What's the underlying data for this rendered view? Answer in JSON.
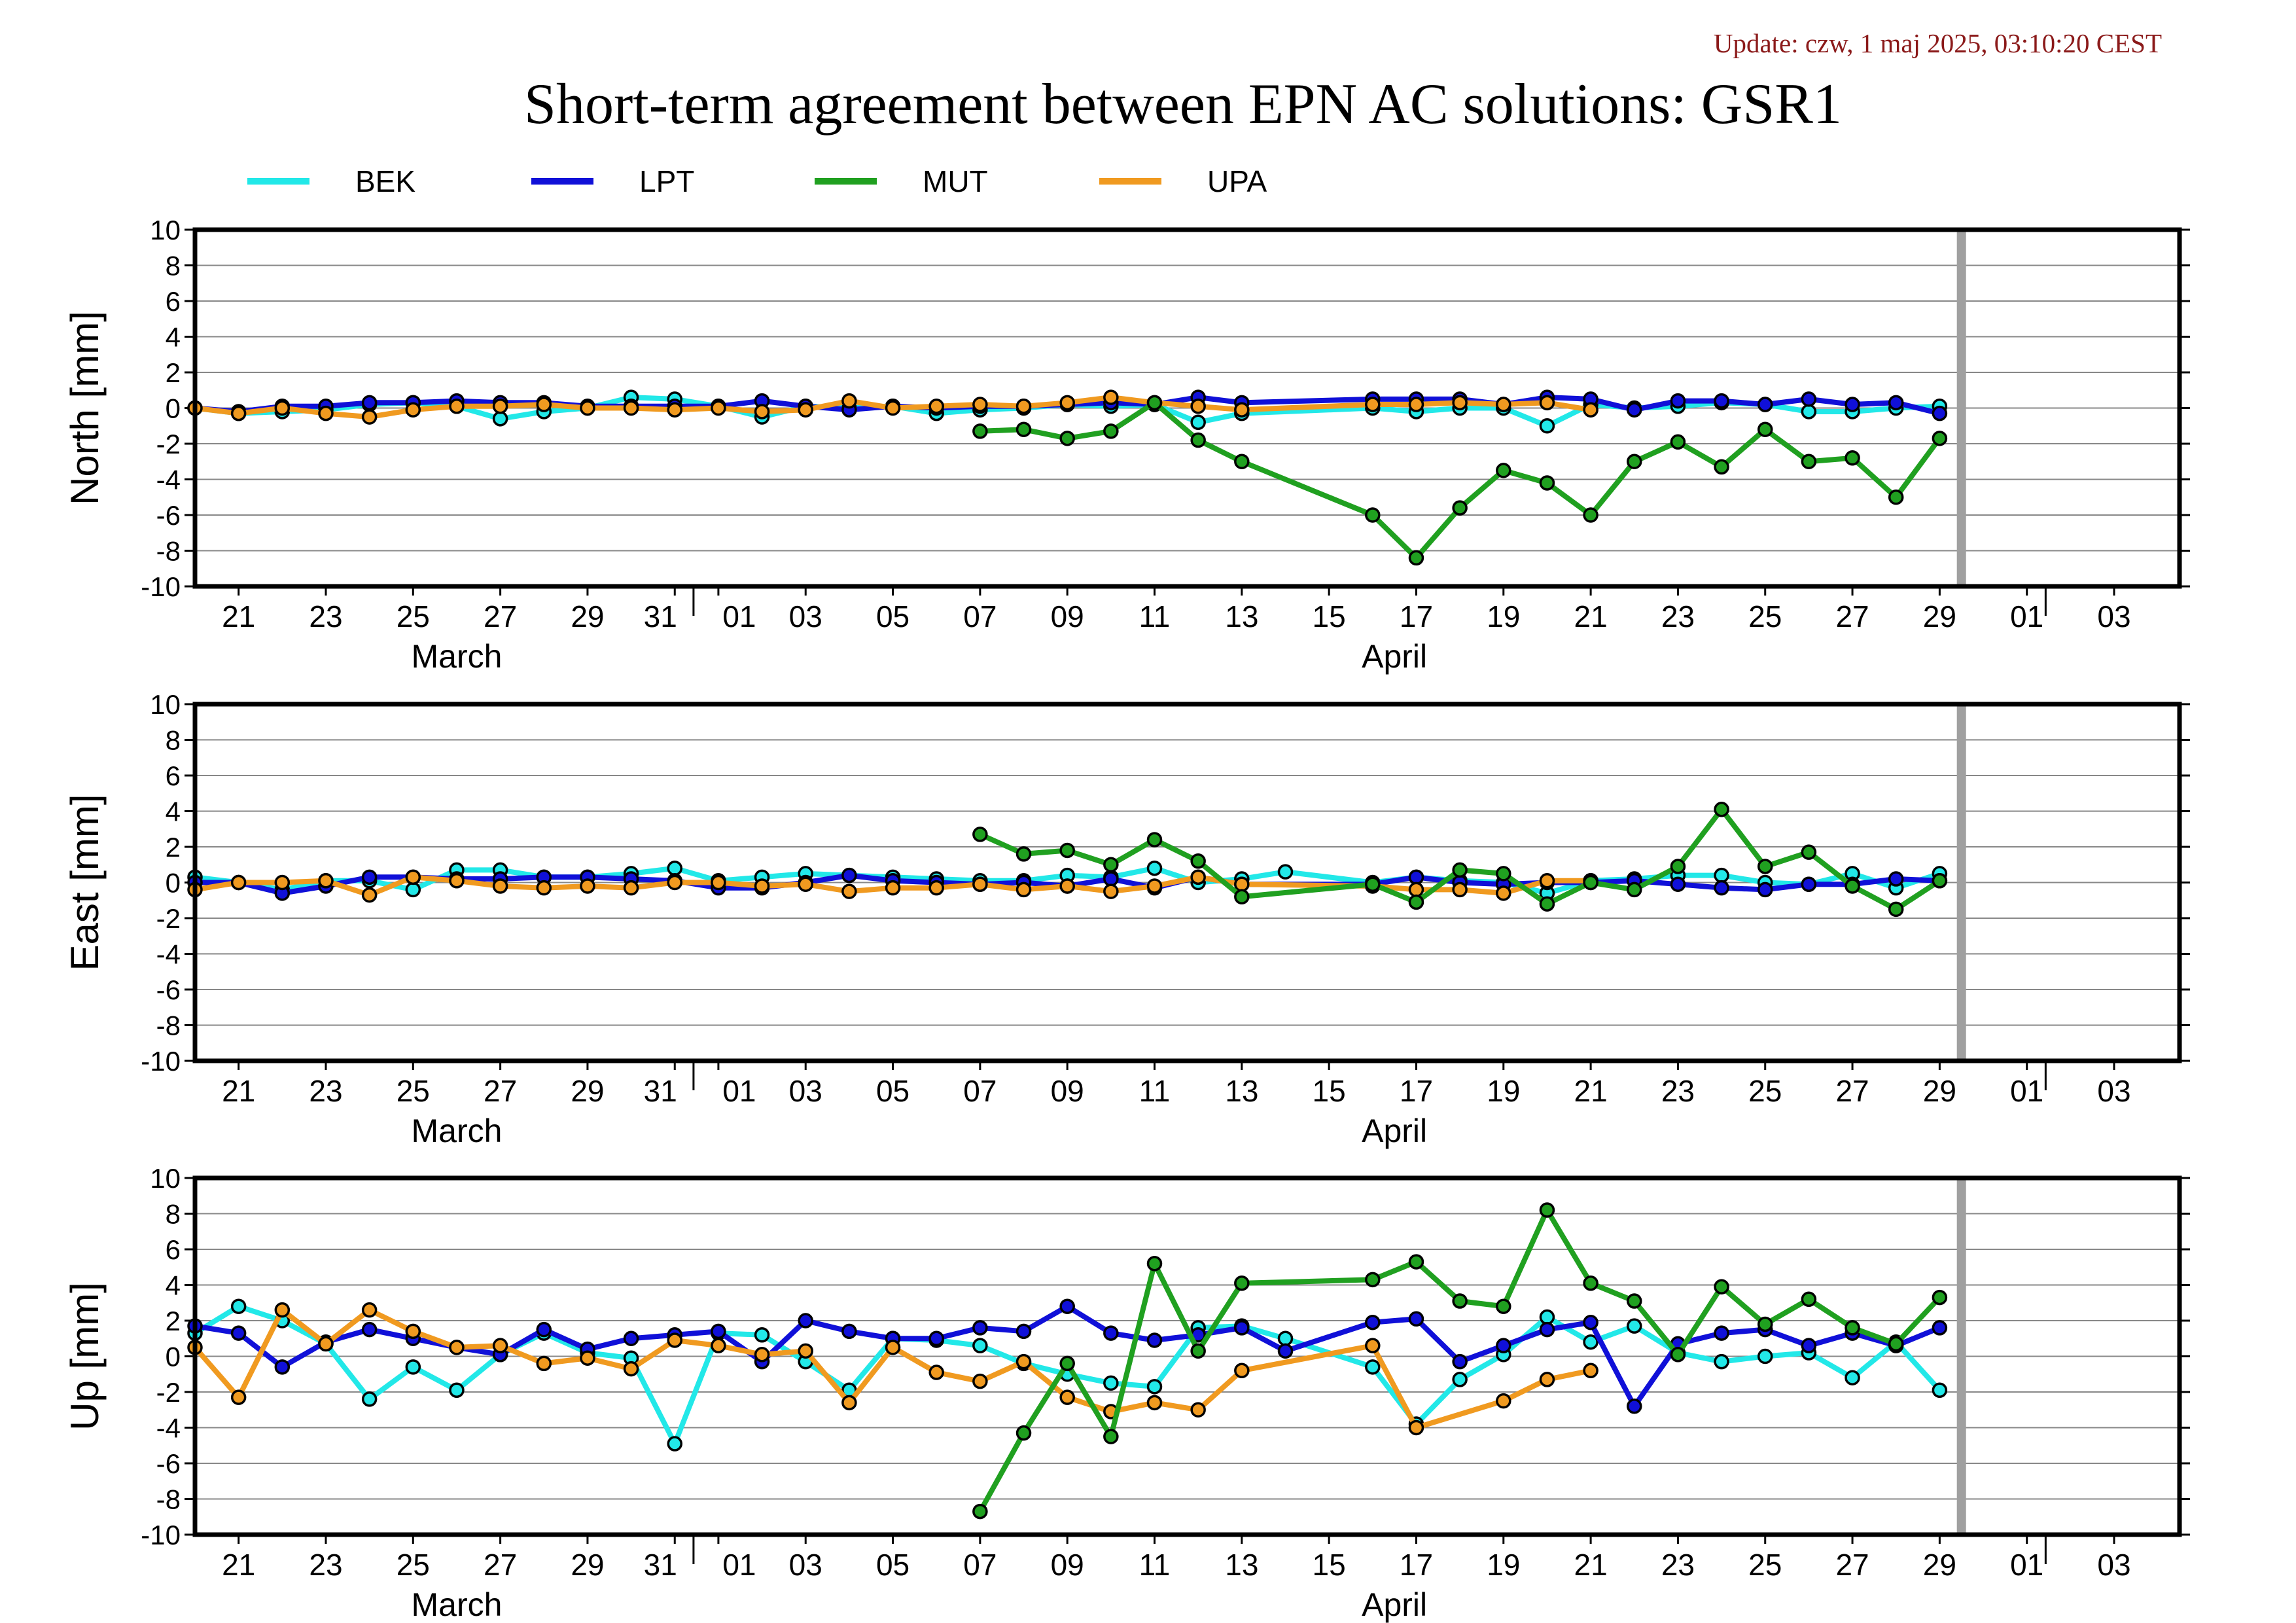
{
  "update_text": "Update: czw, 1 maj 2025, 03:10:20 CEST",
  "title": "Short-term agreement between EPN AC solutions: GSR1",
  "colors": {
    "BEK": "#22e8e8",
    "LPT": "#1010d8",
    "MUT": "#20a020",
    "UPA": "#f09a20",
    "marker_line": "#000000",
    "today_bar": "#a0a0a0",
    "grid": "#888888"
  },
  "legend": [
    {
      "name": "BEK",
      "color": "#22e8e8"
    },
    {
      "name": "LPT",
      "color": "#1010d8"
    },
    {
      "name": "MUT",
      "color": "#20a020"
    },
    {
      "name": "UPA",
      "color": "#f09a20"
    }
  ],
  "x_ticks": [
    "21",
    "23",
    "25",
    "27",
    "29",
    "31",
    "01",
    "03",
    "05",
    "07",
    "09",
    "11",
    "13",
    "15",
    "17",
    "19",
    "21",
    "23",
    "25",
    "27",
    "29",
    "01",
    "03"
  ],
  "month_labels": [
    "March",
    "April"
  ],
  "chart_data": [
    {
      "type": "line",
      "ylabel": "North [mm]",
      "ylim": [
        -10,
        10
      ],
      "yticks": [
        10,
        8,
        6,
        4,
        2,
        0,
        -2,
        -4,
        -6,
        -8,
        -10
      ],
      "x_unit": "day index from 20 March 2025",
      "xlim": [
        20,
        65
      ],
      "grid": true,
      "series": [
        {
          "name": "BEK",
          "x": [
            20,
            21,
            22,
            23,
            24,
            25,
            26,
            27,
            28,
            29,
            30,
            31,
            32,
            33,
            34,
            35,
            36,
            37,
            38,
            39,
            40,
            41,
            42,
            43,
            44,
            47,
            48,
            49,
            50,
            51,
            52,
            53,
            54,
            55,
            56,
            57,
            58,
            59,
            60
          ],
          "values": [
            0,
            -0.3,
            -0.2,
            -0.1,
            0.2,
            0.3,
            0.1,
            -0.6,
            -0.2,
            0,
            0.6,
            0.5,
            0.1,
            -0.5,
            0.1,
            0,
            0.1,
            -0.3,
            -0.1,
            0,
            0.2,
            0.1,
            0.2,
            -0.8,
            -0.3,
            0,
            -0.2,
            0,
            0,
            -1.0,
            0.2,
            0,
            0.1,
            0.3,
            0.2,
            -0.2,
            -0.2,
            0,
            0.1
          ]
        },
        {
          "name": "LPT",
          "x": [
            20,
            21,
            22,
            23,
            24,
            25,
            26,
            27,
            28,
            29,
            30,
            31,
            32,
            33,
            34,
            35,
            36,
            37,
            38,
            39,
            40,
            41,
            42,
            43,
            44,
            47,
            48,
            49,
            50,
            51,
            52,
            53,
            54,
            55,
            56,
            57,
            58,
            59,
            60
          ],
          "values": [
            0,
            -0.2,
            0.1,
            0.1,
            0.3,
            0.3,
            0.4,
            0.3,
            0.3,
            0.1,
            0.1,
            0.1,
            0.1,
            0.4,
            0.1,
            -0.1,
            0.1,
            0,
            0.1,
            0.1,
            0.2,
            0.3,
            0.2,
            0.6,
            0.3,
            0.5,
            0.5,
            0.5,
            0.2,
            0.6,
            0.5,
            -0.1,
            0.4,
            0.4,
            0.2,
            0.5,
            0.2,
            0.3,
            -0.3
          ]
        },
        {
          "name": "MUT",
          "x": [
            38,
            39,
            40,
            41,
            42,
            43,
            44,
            47,
            48,
            49,
            50,
            51,
            52,
            53,
            54,
            55,
            56,
            57,
            58,
            59,
            60
          ],
          "values": [
            -1.3,
            -1.2,
            -1.7,
            -1.3,
            0.3,
            -1.8,
            -3.0,
            -6.0,
            -8.4,
            -5.6,
            -3.5,
            -4.2,
            -6.0,
            -3.0,
            -1.9,
            -3.3,
            -1.2,
            -3.0,
            -2.8,
            -5.0,
            -1.7
          ]
        },
        {
          "name": "UPA",
          "x": [
            20,
            21,
            22,
            23,
            24,
            25,
            26,
            27,
            28,
            29,
            30,
            31,
            32,
            33,
            34,
            35,
            36,
            37,
            38,
            39,
            40,
            41,
            42,
            43,
            44,
            47,
            48,
            49,
            50,
            51,
            52
          ],
          "values": [
            0,
            -0.3,
            0,
            -0.3,
            -0.5,
            -0.1,
            0.1,
            0.1,
            0.2,
            0,
            0,
            -0.1,
            0,
            -0.2,
            -0.1,
            0.4,
            0,
            0.1,
            0.2,
            0.1,
            0.3,
            0.6,
            0.3,
            0.1,
            -0.1,
            0.2,
            0.2,
            0.3,
            0.2,
            0.3,
            -0.1
          ]
        }
      ]
    },
    {
      "type": "line",
      "ylabel": "East [mm]",
      "ylim": [
        -10,
        10
      ],
      "yticks": [
        10,
        8,
        6,
        4,
        2,
        0,
        -2,
        -4,
        -6,
        -8,
        -10
      ],
      "x_unit": "day index from 20 March 2025",
      "xlim": [
        20,
        65
      ],
      "grid": true,
      "series": [
        {
          "name": "BEK",
          "x": [
            20,
            21,
            22,
            23,
            24,
            25,
            26,
            27,
            28,
            29,
            30,
            31,
            32,
            33,
            34,
            35,
            36,
            37,
            38,
            39,
            40,
            41,
            42,
            43,
            44,
            45,
            47,
            48,
            49,
            50,
            51,
            52,
            53,
            54,
            55,
            56,
            57,
            58,
            59,
            60
          ],
          "values": [
            0.3,
            0,
            -0.4,
            0.1,
            0.1,
            -0.4,
            0.7,
            0.7,
            0.3,
            0.3,
            0.5,
            0.8,
            0.1,
            0.3,
            0.5,
            0.4,
            0.3,
            0.2,
            0.1,
            0.1,
            0.4,
            0.3,
            0.8,
            0,
            0.2,
            0.6,
            0,
            0.3,
            0.1,
            0,
            -0.6,
            0.1,
            0.2,
            0.4,
            0.4,
            0,
            -0.1,
            0.5,
            -0.3,
            0.5
          ]
        },
        {
          "name": "LPT",
          "x": [
            20,
            21,
            22,
            23,
            24,
            25,
            26,
            27,
            28,
            29,
            30,
            31,
            32,
            33,
            34,
            35,
            36,
            37,
            38,
            39,
            40,
            41,
            42,
            43,
            44,
            47,
            48,
            49,
            50,
            51,
            52,
            53,
            54,
            55,
            56,
            57,
            58,
            59,
            60
          ],
          "values": [
            0,
            0,
            -0.6,
            -0.2,
            0.3,
            0.3,
            0.2,
            0.2,
            0.3,
            0.3,
            0.2,
            0.1,
            -0.3,
            -0.3,
            0,
            0.4,
            0.1,
            0,
            -0.1,
            0,
            -0.2,
            0.2,
            -0.3,
            0.3,
            -0.1,
            -0.1,
            0.3,
            0,
            -0.1,
            0,
            0,
            0.1,
            -0.1,
            -0.3,
            -0.4,
            -0.1,
            -0.1,
            0.2,
            0.1
          ]
        },
        {
          "name": "MUT",
          "x": [
            38,
            39,
            40,
            41,
            42,
            43,
            44,
            47,
            48,
            49,
            50,
            51,
            52,
            53,
            54,
            55,
            56,
            57,
            58,
            59,
            60
          ],
          "values": [
            2.7,
            1.6,
            1.8,
            1.0,
            2.4,
            1.2,
            -0.8,
            -0.1,
            -1.1,
            0.7,
            0.5,
            -1.2,
            0,
            -0.4,
            0.9,
            4.1,
            0.9,
            1.7,
            -0.2,
            -1.5,
            0.1
          ]
        },
        {
          "name": "UPA",
          "x": [
            20,
            21,
            22,
            23,
            24,
            25,
            26,
            27,
            28,
            29,
            30,
            31,
            32,
            33,
            34,
            35,
            36,
            37,
            38,
            39,
            40,
            41,
            42,
            43,
            44,
            47,
            48,
            49,
            50,
            51,
            52
          ],
          "values": [
            -0.4,
            0,
            0,
            0.1,
            -0.7,
            0.3,
            0.1,
            -0.2,
            -0.3,
            -0.2,
            -0.3,
            0,
            0,
            -0.2,
            -0.1,
            -0.5,
            -0.3,
            -0.3,
            -0.1,
            -0.4,
            -0.2,
            -0.5,
            -0.2,
            0.3,
            -0.1,
            -0.2,
            -0.4,
            -0.4,
            -0.6,
            0.1,
            0.1
          ]
        }
      ]
    },
    {
      "type": "line",
      "ylabel": "Up [mm]",
      "ylim": [
        -10,
        10
      ],
      "yticks": [
        10,
        8,
        6,
        4,
        2,
        0,
        -2,
        -4,
        -6,
        -8,
        -10
      ],
      "x_unit": "day index from 20 March 2025",
      "xlim": [
        20,
        65
      ],
      "grid": true,
      "series": [
        {
          "name": "BEK",
          "x": [
            20,
            21,
            22,
            23,
            24,
            25,
            26,
            27,
            28,
            29,
            30,
            31,
            32,
            33,
            34,
            35,
            36,
            37,
            38,
            39,
            40,
            41,
            42,
            43,
            44,
            45,
            47,
            48,
            49,
            50,
            51,
            52,
            53,
            54,
            55,
            56,
            57,
            58,
            59,
            60
          ],
          "values": [
            1.3,
            2.8,
            2.0,
            0.7,
            -2.4,
            -0.6,
            -1.9,
            0.1,
            1.3,
            0.2,
            -0.1,
            -4.9,
            1.3,
            1.2,
            -0.3,
            -1.9,
            1.0,
            0.9,
            0.6,
            -0.4,
            -1.0,
            -1.5,
            -1.7,
            1.6,
            1.7,
            1.0,
            -0.6,
            -3.8,
            -1.3,
            0.1,
            2.2,
            0.8,
            1.7,
            0.2,
            -0.3,
            0,
            0.2,
            -1.2,
            0.8,
            -1.9
          ]
        },
        {
          "name": "LPT",
          "x": [
            20,
            21,
            22,
            23,
            24,
            25,
            26,
            27,
            28,
            29,
            30,
            31,
            32,
            33,
            34,
            35,
            36,
            37,
            38,
            39,
            40,
            41,
            42,
            43,
            44,
            45,
            47,
            48,
            49,
            50,
            51,
            52,
            53,
            54,
            55,
            56,
            57,
            58,
            59,
            60
          ],
          "values": [
            1.7,
            1.3,
            -0.6,
            0.8,
            1.5,
            1.0,
            0.5,
            0.1,
            1.5,
            0.4,
            1.0,
            1.2,
            1.4,
            -0.3,
            2.0,
            1.4,
            1.0,
            1.0,
            1.6,
            1.4,
            2.8,
            1.3,
            0.9,
            1.2,
            1.6,
            0.3,
            1.9,
            2.1,
            -0.3,
            0.6,
            1.5,
            1.9,
            -2.8,
            0.7,
            1.3,
            1.5,
            0.6,
            1.3,
            0.6,
            1.6
          ]
        },
        {
          "name": "MUT",
          "x": [
            38,
            39,
            40,
            41,
            42,
            43,
            44,
            47,
            48,
            49,
            50,
            51,
            52,
            53,
            54,
            55,
            56,
            57,
            58,
            59,
            60
          ],
          "values": [
            -8.7,
            -4.3,
            -0.4,
            -4.5,
            5.2,
            0.3,
            4.1,
            4.3,
            5.3,
            3.1,
            2.8,
            8.2,
            4.1,
            3.1,
            0.1,
            3.9,
            1.8,
            3.2,
            1.6,
            0.7,
            3.3
          ]
        },
        {
          "name": "UPA",
          "x": [
            20,
            21,
            22,
            23,
            24,
            25,
            26,
            27,
            28,
            29,
            30,
            31,
            32,
            33,
            34,
            35,
            36,
            37,
            38,
            39,
            40,
            41,
            42,
            43,
            44,
            47,
            48,
            50,
            51,
            52
          ],
          "values": [
            0.5,
            -2.3,
            2.6,
            0.7,
            2.6,
            1.4,
            0.5,
            0.6,
            -0.4,
            -0.1,
            -0.7,
            0.9,
            0.6,
            0.1,
            0.3,
            -2.6,
            0.5,
            -0.9,
            -1.4,
            -0.3,
            -2.3,
            -3.1,
            -2.6,
            -3.0,
            -0.8,
            0.6,
            -4.0,
            -2.5,
            -1.3,
            -0.8
          ]
        }
      ]
    }
  ]
}
